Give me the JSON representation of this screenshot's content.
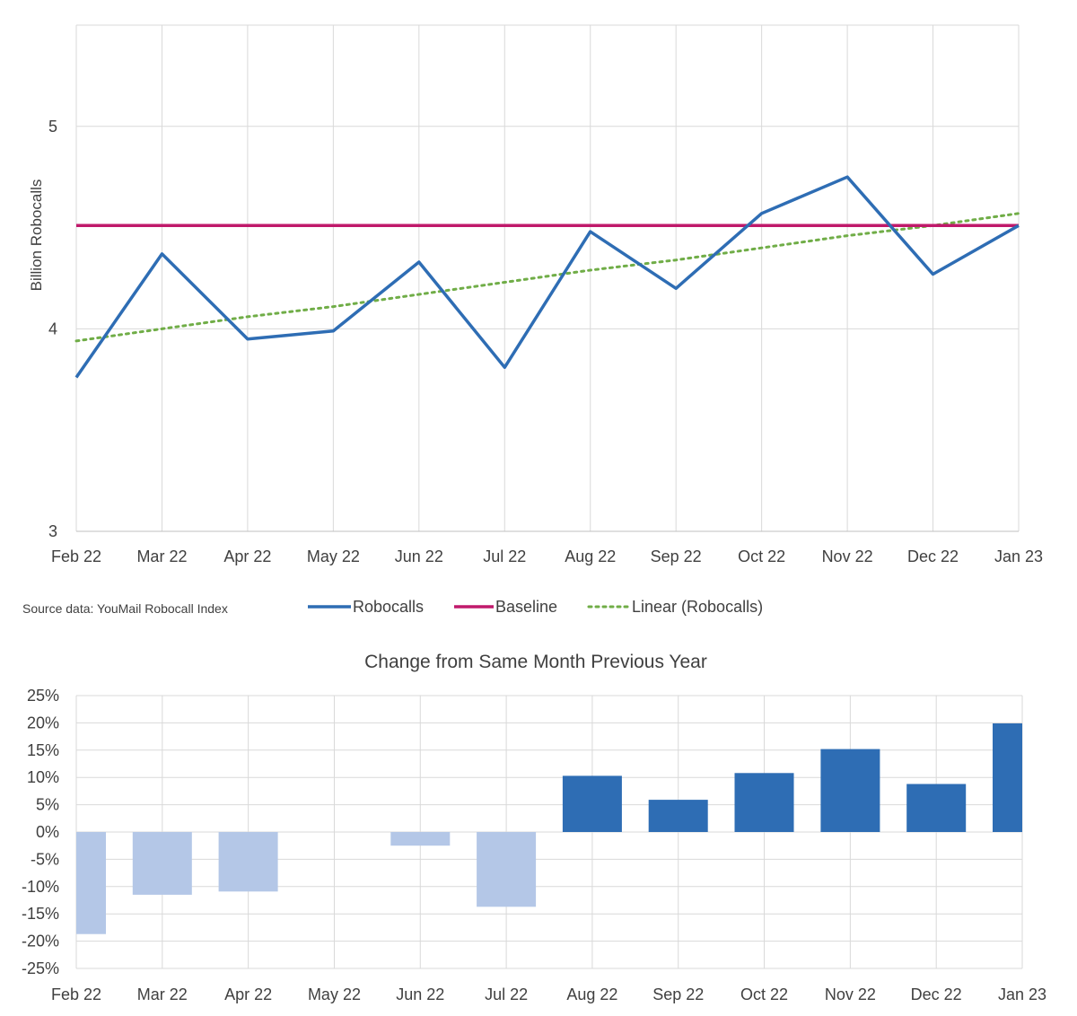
{
  "source_note": "Source data: YouMail Robocall Index",
  "chart_data": [
    {
      "type": "line",
      "title": "",
      "ylabel": "Billion Robocalls",
      "categories": [
        "Feb 22",
        "Mar 22",
        "Apr 22",
        "May 22",
        "Jun 22",
        "Jul 22",
        "Aug 22",
        "Sep 22",
        "Oct 22",
        "Nov 22",
        "Dec 22",
        "Jan 23"
      ],
      "ylim": [
        3,
        5.5
      ],
      "yticks": [
        "3",
        "4",
        "5"
      ],
      "grid": true,
      "legend_position": "bottom",
      "series": [
        {
          "name": "Robocalls",
          "color": "#2E6DB4",
          "style": "solid",
          "values": [
            3.76,
            4.37,
            3.95,
            3.99,
            4.33,
            3.81,
            4.48,
            4.2,
            4.57,
            4.75,
            4.27,
            4.51
          ]
        },
        {
          "name": "Baseline",
          "color": "#C0196B",
          "style": "solid",
          "values": [
            4.51,
            4.51,
            4.51,
            4.51,
            4.51,
            4.51,
            4.51,
            4.51,
            4.51,
            4.51,
            4.51,
            4.51
          ]
        },
        {
          "name": "Linear (Robocalls)",
          "color": "#70AD47",
          "style": "dotted",
          "values": [
            3.94,
            4.0,
            4.06,
            4.11,
            4.17,
            4.23,
            4.29,
            4.34,
            4.4,
            4.46,
            4.51,
            4.57
          ]
        }
      ]
    },
    {
      "type": "bar",
      "title": "Change from Same Month Previous Year",
      "categories": [
        "Feb 22",
        "Mar 22",
        "Apr 22",
        "May 22",
        "Jun 22",
        "Jul 22",
        "Aug 22",
        "Sep 22",
        "Oct 22",
        "Nov 22",
        "Dec 22",
        "Jan 23"
      ],
      "ylim": [
        -25,
        25
      ],
      "yticks": [
        "25%",
        "20%",
        "15%",
        "10%",
        "5%",
        "0%",
        "-5%",
        "-10%",
        "-15%",
        "-20%",
        "-25%"
      ],
      "grid": true,
      "negative_color": "#B4C7E7",
      "positive_color": "#2E6DB4",
      "values": [
        -18.7,
        -11.5,
        -10.9,
        0,
        -2.5,
        -13.7,
        10.3,
        5.9,
        10.8,
        15.2,
        8.8,
        19.9
      ]
    }
  ]
}
